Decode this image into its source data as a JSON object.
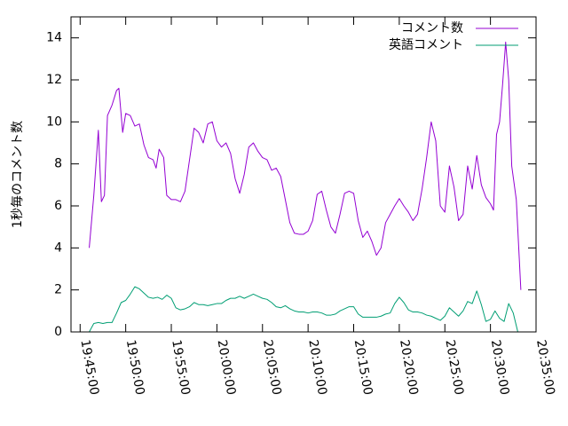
{
  "chart_data": {
    "type": "line",
    "title": "",
    "xlabel": "",
    "ylabel": "1秒毎のコメント数",
    "xlim": [
      "19:44:00",
      "20:35:00"
    ],
    "ylim": [
      0,
      15
    ],
    "x_ticks": [
      "19:45:00",
      "19:50:00",
      "19:55:00",
      "20:00:00",
      "20:05:00",
      "20:10:00",
      "20:15:00",
      "20:20:00",
      "20:25:00",
      "20:30:00",
      "20:35:00"
    ],
    "y_ticks": [
      0,
      2,
      4,
      6,
      8,
      10,
      12,
      14
    ],
    "grid": false,
    "legend_position": "top-right",
    "series": [
      {
        "name": "コメント数",
        "color": "#9400d3",
        "points": [
          [
            "19:46:00",
            4.0
          ],
          [
            "19:46:30",
            6.5
          ],
          [
            "19:47:00",
            9.6
          ],
          [
            "19:47:20",
            6.2
          ],
          [
            "19:47:40",
            6.5
          ],
          [
            "19:48:00",
            10.3
          ],
          [
            "19:48:30",
            10.8
          ],
          [
            "19:49:00",
            11.5
          ],
          [
            "19:49:15",
            11.6
          ],
          [
            "19:49:40",
            9.5
          ],
          [
            "19:50:00",
            10.4
          ],
          [
            "19:50:30",
            10.3
          ],
          [
            "19:51:00",
            9.8
          ],
          [
            "19:51:30",
            9.9
          ],
          [
            "19:52:00",
            8.9
          ],
          [
            "19:52:30",
            8.3
          ],
          [
            "19:53:00",
            8.2
          ],
          [
            "19:53:20",
            7.8
          ],
          [
            "19:53:40",
            8.7
          ],
          [
            "19:54:10",
            8.3
          ],
          [
            "19:54:30",
            6.5
          ],
          [
            "19:55:00",
            6.3
          ],
          [
            "19:55:30",
            6.3
          ],
          [
            "19:56:00",
            6.2
          ],
          [
            "19:56:30",
            6.7
          ],
          [
            "19:57:30",
            9.7
          ],
          [
            "19:58:00",
            9.5
          ],
          [
            "19:58:30",
            9.0
          ],
          [
            "19:59:00",
            9.9
          ],
          [
            "19:59:30",
            10.0
          ],
          [
            "20:00:00",
            9.1
          ],
          [
            "20:00:30",
            8.8
          ],
          [
            "20:01:00",
            9.0
          ],
          [
            "20:01:30",
            8.5
          ],
          [
            "20:02:00",
            7.3
          ],
          [
            "20:02:30",
            6.6
          ],
          [
            "20:03:00",
            7.5
          ],
          [
            "20:03:30",
            8.8
          ],
          [
            "20:04:00",
            9.0
          ],
          [
            "20:04:30",
            8.6
          ],
          [
            "20:05:00",
            8.3
          ],
          [
            "20:05:30",
            8.2
          ],
          [
            "20:06:00",
            7.7
          ],
          [
            "20:06:30",
            7.8
          ],
          [
            "20:07:00",
            7.4
          ],
          [
            "20:07:30",
            6.3
          ],
          [
            "20:08:00",
            5.2
          ],
          [
            "20:08:30",
            4.7
          ],
          [
            "20:09:00",
            4.65
          ],
          [
            "20:09:30",
            4.65
          ],
          [
            "20:10:00",
            4.8
          ],
          [
            "20:10:30",
            5.3
          ],
          [
            "20:11:00",
            6.55
          ],
          [
            "20:11:30",
            6.7
          ],
          [
            "20:12:00",
            5.8
          ],
          [
            "20:12:30",
            5.0
          ],
          [
            "20:13:00",
            4.7
          ],
          [
            "20:13:30",
            5.6
          ],
          [
            "20:14:00",
            6.6
          ],
          [
            "20:14:30",
            6.7
          ],
          [
            "20:15:00",
            6.6
          ],
          [
            "20:15:30",
            5.3
          ],
          [
            "20:16:00",
            4.5
          ],
          [
            "20:16:30",
            4.8
          ],
          [
            "20:17:00",
            4.3
          ],
          [
            "20:17:30",
            3.65
          ],
          [
            "20:18:00",
            4.0
          ],
          [
            "20:18:30",
            5.2
          ],
          [
            "20:19:00",
            5.6
          ],
          [
            "20:19:30",
            6.0
          ],
          [
            "20:20:00",
            6.35
          ],
          [
            "20:20:30",
            6.0
          ],
          [
            "20:21:00",
            5.7
          ],
          [
            "20:21:30",
            5.3
          ],
          [
            "20:22:00",
            5.6
          ],
          [
            "20:22:30",
            6.8
          ],
          [
            "20:23:00",
            8.3
          ],
          [
            "20:23:30",
            10.0
          ],
          [
            "20:24:00",
            9.1
          ],
          [
            "20:24:30",
            6.0
          ],
          [
            "20:25:00",
            5.7
          ],
          [
            "20:25:30",
            7.9
          ],
          [
            "20:26:00",
            6.9
          ],
          [
            "20:26:30",
            5.3
          ],
          [
            "20:27:00",
            5.6
          ],
          [
            "20:27:30",
            7.9
          ],
          [
            "20:28:00",
            6.8
          ],
          [
            "20:28:30",
            8.4
          ],
          [
            "20:29:00",
            7.0
          ],
          [
            "20:29:30",
            6.4
          ],
          [
            "20:30:00",
            6.1
          ],
          [
            "20:30:20",
            5.8
          ],
          [
            "20:30:40",
            9.4
          ],
          [
            "20:31:00",
            10.0
          ],
          [
            "20:31:20",
            11.8
          ],
          [
            "20:31:40",
            13.8
          ],
          [
            "20:32:00",
            12.0
          ],
          [
            "20:32:20",
            7.9
          ],
          [
            "20:32:50",
            6.3
          ],
          [
            "20:33:20",
            2.0
          ]
        ]
      },
      {
        "name": "英語コメント",
        "color": "#009e73",
        "points": [
          [
            "19:46:00",
            0.0
          ],
          [
            "19:46:30",
            0.4
          ],
          [
            "19:47:00",
            0.45
          ],
          [
            "19:47:30",
            0.4
          ],
          [
            "19:48:00",
            0.45
          ],
          [
            "19:48:30",
            0.45
          ],
          [
            "19:49:00",
            0.9
          ],
          [
            "19:49:30",
            1.4
          ],
          [
            "19:50:00",
            1.5
          ],
          [
            "19:50:30",
            1.8
          ],
          [
            "19:51:00",
            2.15
          ],
          [
            "19:51:30",
            2.05
          ],
          [
            "19:52:00",
            1.85
          ],
          [
            "19:52:30",
            1.65
          ],
          [
            "19:53:00",
            1.6
          ],
          [
            "19:53:30",
            1.65
          ],
          [
            "19:54:00",
            1.55
          ],
          [
            "19:54:30",
            1.75
          ],
          [
            "19:55:00",
            1.6
          ],
          [
            "19:55:30",
            1.15
          ],
          [
            "19:56:00",
            1.05
          ],
          [
            "19:56:30",
            1.1
          ],
          [
            "19:57:00",
            1.2
          ],
          [
            "19:57:30",
            1.4
          ],
          [
            "19:58:00",
            1.3
          ],
          [
            "19:58:30",
            1.3
          ],
          [
            "19:59:00",
            1.25
          ],
          [
            "19:59:30",
            1.3
          ],
          [
            "20:00:00",
            1.35
          ],
          [
            "20:00:30",
            1.35
          ],
          [
            "20:01:00",
            1.5
          ],
          [
            "20:01:30",
            1.6
          ],
          [
            "20:02:00",
            1.6
          ],
          [
            "20:02:30",
            1.7
          ],
          [
            "20:03:00",
            1.6
          ],
          [
            "20:03:30",
            1.7
          ],
          [
            "20:04:00",
            1.8
          ],
          [
            "20:04:30",
            1.7
          ],
          [
            "20:05:00",
            1.6
          ],
          [
            "20:05:30",
            1.55
          ],
          [
            "20:06:00",
            1.4
          ],
          [
            "20:06:30",
            1.2
          ],
          [
            "20:07:00",
            1.15
          ],
          [
            "20:07:30",
            1.25
          ],
          [
            "20:08:00",
            1.1
          ],
          [
            "20:08:30",
            1.0
          ],
          [
            "20:09:00",
            0.95
          ],
          [
            "20:09:30",
            0.95
          ],
          [
            "20:10:00",
            0.9
          ],
          [
            "20:10:30",
            0.95
          ],
          [
            "20:11:00",
            0.95
          ],
          [
            "20:11:30",
            0.9
          ],
          [
            "20:12:00",
            0.8
          ],
          [
            "20:12:30",
            0.8
          ],
          [
            "20:13:00",
            0.85
          ],
          [
            "20:13:30",
            1.0
          ],
          [
            "20:14:00",
            1.1
          ],
          [
            "20:14:30",
            1.2
          ],
          [
            "20:15:00",
            1.2
          ],
          [
            "20:15:30",
            0.85
          ],
          [
            "20:16:00",
            0.7
          ],
          [
            "20:16:30",
            0.7
          ],
          [
            "20:17:00",
            0.7
          ],
          [
            "20:17:30",
            0.7
          ],
          [
            "20:18:00",
            0.75
          ],
          [
            "20:18:30",
            0.85
          ],
          [
            "20:19:00",
            0.9
          ],
          [
            "20:19:30",
            1.35
          ],
          [
            "20:20:00",
            1.65
          ],
          [
            "20:20:30",
            1.4
          ],
          [
            "20:21:00",
            1.05
          ],
          [
            "20:21:30",
            0.95
          ],
          [
            "20:22:00",
            0.95
          ],
          [
            "20:22:30",
            0.9
          ],
          [
            "20:23:00",
            0.8
          ],
          [
            "20:23:30",
            0.75
          ],
          [
            "20:24:00",
            0.65
          ],
          [
            "20:24:30",
            0.55
          ],
          [
            "20:25:00",
            0.75
          ],
          [
            "20:25:30",
            1.15
          ],
          [
            "20:26:00",
            0.95
          ],
          [
            "20:26:30",
            0.75
          ],
          [
            "20:27:00",
            1.0
          ],
          [
            "20:27:30",
            1.45
          ],
          [
            "20:28:00",
            1.35
          ],
          [
            "20:28:30",
            1.95
          ],
          [
            "20:29:00",
            1.3
          ],
          [
            "20:29:30",
            0.5
          ],
          [
            "20:30:00",
            0.6
          ],
          [
            "20:30:30",
            1.0
          ],
          [
            "20:31:00",
            0.65
          ],
          [
            "20:31:30",
            0.5
          ],
          [
            "20:32:00",
            1.35
          ],
          [
            "20:32:30",
            0.9
          ],
          [
            "20:33:00",
            0.0
          ]
        ]
      }
    ]
  }
}
